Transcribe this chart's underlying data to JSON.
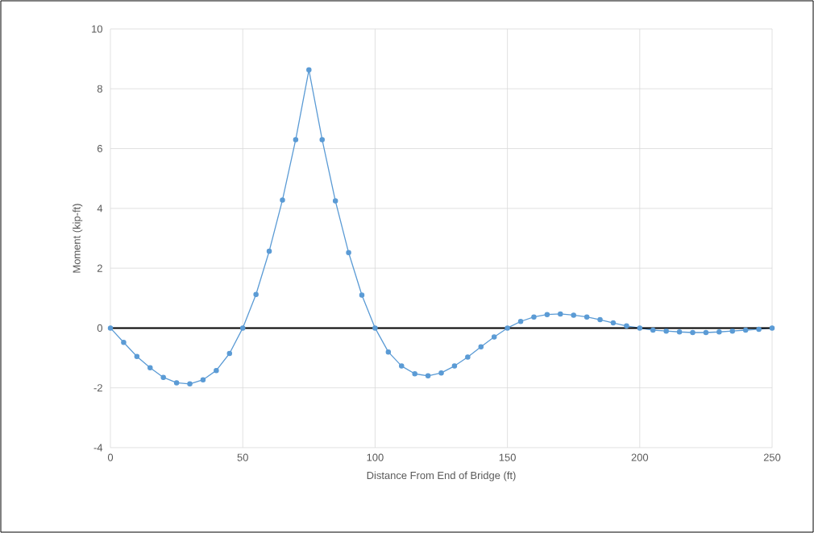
{
  "chart_data": {
    "type": "line",
    "xlabel": "Distance From End of Bridge (ft)",
    "ylabel": "Moment (kip-ft)",
    "x": [
      0,
      5,
      10,
      15,
      20,
      25,
      30,
      35,
      40,
      45,
      50,
      55,
      60,
      65,
      70,
      75,
      80,
      85,
      90,
      95,
      100,
      105,
      110,
      115,
      120,
      125,
      130,
      135,
      140,
      145,
      150,
      155,
      160,
      165,
      170,
      175,
      180,
      185,
      190,
      195,
      200,
      205,
      210,
      215,
      220,
      225,
      230,
      235,
      240,
      245,
      250
    ],
    "series": [
      {
        "color": "#5b9bd5",
        "values": [
          0,
          -0.48,
          -0.95,
          -1.33,
          -1.65,
          -1.83,
          -1.87,
          -1.73,
          -1.42,
          -0.85,
          0,
          1.12,
          2.57,
          4.28,
          6.3,
          8.63,
          6.3,
          4.25,
          2.52,
          1.1,
          0,
          -0.8,
          -1.27,
          -1.53,
          -1.6,
          -1.5,
          -1.27,
          -0.97,
          -0.63,
          -0.3,
          0,
          0.22,
          0.37,
          0.45,
          0.47,
          0.43,
          0.37,
          0.28,
          0.17,
          0.07,
          0,
          -0.07,
          -0.1,
          -0.13,
          -0.15,
          -0.15,
          -0.13,
          -0.1,
          -0.07,
          -0.04,
          0
        ]
      }
    ],
    "xlim": [
      0,
      250
    ],
    "xticks": [
      0,
      50,
      100,
      150,
      200,
      250
    ],
    "ylim": [
      -4,
      10
    ],
    "yticks": [
      -4,
      -2,
      0,
      2,
      4,
      6,
      8,
      10
    ],
    "ref_lines": [
      {
        "axis": "y",
        "value": 0,
        "color": "#000000"
      }
    ],
    "grid": true,
    "marker": "circle",
    "line_style": "solid"
  }
}
